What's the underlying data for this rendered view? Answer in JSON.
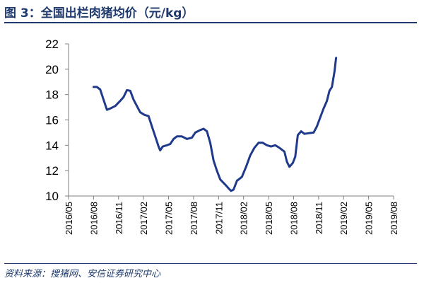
{
  "figure": {
    "title": "图 3：全国出栏肉猪均价（元/kg）",
    "source": "资料来源：搜猪网、安信证券研究中心"
  },
  "colors": {
    "line": "#1f3a8a",
    "title": "#1f3a6e",
    "axis": "#7f7f7f"
  },
  "chart_data": {
    "type": "line",
    "title": "全国出栏肉猪均价（元/kg）",
    "xlabel": "",
    "ylabel": "",
    "ylim": [
      10,
      22
    ],
    "yticks": [
      10,
      12,
      14,
      16,
      18,
      20,
      22
    ],
    "x_ticks": [
      "2016/05",
      "2016/08",
      "2016/11",
      "2017/02",
      "2017/05",
      "2017/08",
      "2017/11",
      "2018/02",
      "2018/05",
      "2018/08",
      "2018/11",
      "2019/02",
      "2019/05",
      "2019/08"
    ],
    "grid": false,
    "legend": "none",
    "series": [
      {
        "name": "全国出栏肉猪均价",
        "points": [
          [
            3.0,
            18.6
          ],
          [
            3.4,
            18.6
          ],
          [
            3.8,
            18.4
          ],
          [
            4.2,
            17.6
          ],
          [
            4.6,
            16.8
          ],
          [
            5.0,
            16.9
          ],
          [
            5.6,
            17.1
          ],
          [
            6.2,
            17.5
          ],
          [
            6.6,
            17.8
          ],
          [
            7.0,
            18.35
          ],
          [
            7.4,
            18.3
          ],
          [
            7.8,
            17.6
          ],
          [
            8.2,
            17.1
          ],
          [
            8.6,
            16.6
          ],
          [
            9.1,
            16.4
          ],
          [
            9.6,
            16.3
          ],
          [
            10.0,
            15.5
          ],
          [
            10.4,
            14.7
          ],
          [
            10.8,
            13.9
          ],
          [
            11.0,
            13.6
          ],
          [
            11.3,
            13.9
          ],
          [
            11.8,
            14.0
          ],
          [
            12.2,
            14.1
          ],
          [
            12.6,
            14.5
          ],
          [
            13.0,
            14.7
          ],
          [
            13.6,
            14.7
          ],
          [
            14.2,
            14.5
          ],
          [
            14.8,
            14.6
          ],
          [
            15.2,
            15.0
          ],
          [
            15.8,
            15.2
          ],
          [
            16.2,
            15.3
          ],
          [
            16.6,
            15.1
          ],
          [
            17.0,
            14.2
          ],
          [
            17.4,
            12.8
          ],
          [
            17.8,
            12.0
          ],
          [
            18.2,
            11.3
          ],
          [
            18.8,
            10.9
          ],
          [
            19.2,
            10.6
          ],
          [
            19.5,
            10.4
          ],
          [
            19.8,
            10.5
          ],
          [
            20.2,
            11.2
          ],
          [
            20.8,
            11.5
          ],
          [
            21.3,
            12.3
          ],
          [
            21.8,
            13.2
          ],
          [
            22.3,
            13.8
          ],
          [
            22.8,
            14.2
          ],
          [
            23.3,
            14.2
          ],
          [
            23.8,
            14.0
          ],
          [
            24.3,
            13.9
          ],
          [
            24.8,
            14.0
          ],
          [
            25.3,
            13.8
          ],
          [
            25.9,
            13.5
          ],
          [
            26.2,
            12.7
          ],
          [
            26.5,
            12.3
          ],
          [
            26.9,
            12.6
          ],
          [
            27.2,
            13.1
          ],
          [
            27.5,
            14.8
          ],
          [
            27.9,
            15.1
          ],
          [
            28.3,
            14.9
          ],
          [
            28.8,
            14.95
          ],
          [
            29.4,
            15.0
          ],
          [
            29.8,
            15.5
          ],
          [
            30.2,
            16.2
          ],
          [
            30.6,
            16.9
          ],
          [
            31.0,
            17.5
          ],
          [
            31.3,
            18.3
          ],
          [
            31.6,
            18.6
          ],
          [
            31.9,
            19.8
          ],
          [
            32.1,
            20.9
          ]
        ]
      }
    ]
  }
}
